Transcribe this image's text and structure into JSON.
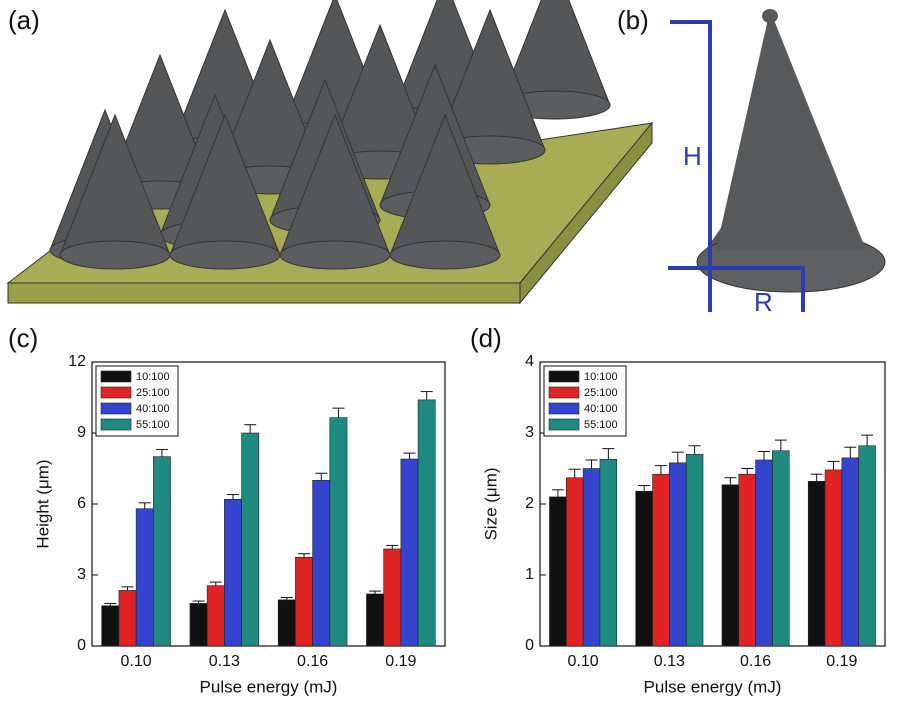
{
  "panels": {
    "a": "(a)",
    "b": "(b)",
    "c": "(c)",
    "d": "(d)"
  },
  "diagram": {
    "h_label": "H",
    "r_label": "R"
  },
  "chart_data": [
    {
      "type": "bar",
      "y_label": "Height (μm)",
      "x_label": "Pulse energy (mJ)",
      "categories": [
        "0.10",
        "0.13",
        "0.16",
        "0.19"
      ],
      "ylim": [
        0,
        12
      ],
      "yticks": [
        0,
        3,
        6,
        9,
        12
      ],
      "series": [
        {
          "name": "10:100",
          "color": "#111111",
          "values": [
            1.7,
            1.8,
            1.95,
            2.2
          ],
          "errors": [
            0.1,
            0.1,
            0.1,
            0.12
          ]
        },
        {
          "name": "25:100",
          "color": "#e02424",
          "values": [
            2.35,
            2.55,
            3.75,
            4.1
          ],
          "errors": [
            0.15,
            0.15,
            0.15,
            0.15
          ]
        },
        {
          "name": "40:100",
          "color": "#3444cc",
          "values": [
            5.8,
            6.2,
            7.0,
            7.9
          ],
          "errors": [
            0.25,
            0.2,
            0.3,
            0.25
          ]
        },
        {
          "name": "55:100",
          "color": "#1e8a80",
          "values": [
            8.0,
            9.0,
            9.65,
            10.4
          ],
          "errors": [
            0.3,
            0.35,
            0.4,
            0.35
          ]
        }
      ]
    },
    {
      "type": "bar",
      "y_label": "Size (μm)",
      "x_label": "Pulse energy (mJ)",
      "categories": [
        "0.10",
        "0.13",
        "0.16",
        "0.19"
      ],
      "ylim": [
        0,
        4
      ],
      "yticks": [
        0,
        1,
        2,
        3,
        4
      ],
      "series": [
        {
          "name": "10:100",
          "color": "#111111",
          "values": [
            2.1,
            2.18,
            2.27,
            2.32
          ],
          "errors": [
            0.1,
            0.08,
            0.1,
            0.1
          ]
        },
        {
          "name": "25:100",
          "color": "#e02424",
          "values": [
            2.37,
            2.42,
            2.42,
            2.48
          ],
          "errors": [
            0.12,
            0.12,
            0.08,
            0.12
          ]
        },
        {
          "name": "40:100",
          "color": "#3444cc",
          "values": [
            2.5,
            2.58,
            2.62,
            2.65
          ],
          "errors": [
            0.12,
            0.15,
            0.12,
            0.15
          ]
        },
        {
          "name": "55:100",
          "color": "#1e8a80",
          "values": [
            2.63,
            2.7,
            2.75,
            2.82
          ],
          "errors": [
            0.15,
            0.12,
            0.15,
            0.15
          ]
        }
      ]
    }
  ]
}
